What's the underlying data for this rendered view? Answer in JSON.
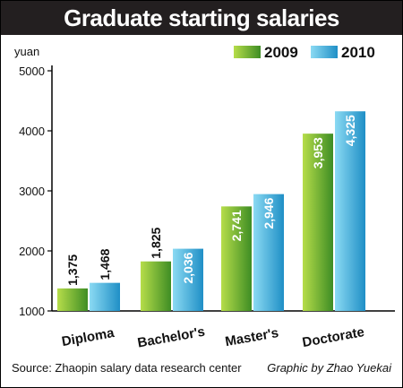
{
  "title": "Graduate starting salaries",
  "source": "Source: Zhaopin salary data research center",
  "credit": "Graphic by Zhao Yuekai",
  "colors": {
    "title_bg": "#231f20",
    "series_2009_light": "#b6dd4a",
    "series_2009_dark": "#3e8d24",
    "series_2010_light": "#8bdaf3",
    "series_2010_dark": "#1f8fc6"
  },
  "chart_data": {
    "type": "bar",
    "ylabel": "yuan",
    "ylim": [
      1000,
      5000
    ],
    "yticks": [
      1000,
      2000,
      3000,
      4000,
      5000
    ],
    "categories": [
      "Diploma",
      "Bachelor's",
      "Master's",
      "Doctorate"
    ],
    "series": [
      {
        "name": "2009",
        "values": [
          1375,
          1825,
          2741,
          3953
        ],
        "labels": [
          "1,375",
          "1,825",
          "2,741",
          "3,953"
        ]
      },
      {
        "name": "2010",
        "values": [
          1468,
          2036,
          2946,
          4325
        ],
        "labels": [
          "1,468",
          "2,036",
          "2,946",
          "4,325"
        ]
      }
    ],
    "legend": "top-right",
    "grid": false
  }
}
